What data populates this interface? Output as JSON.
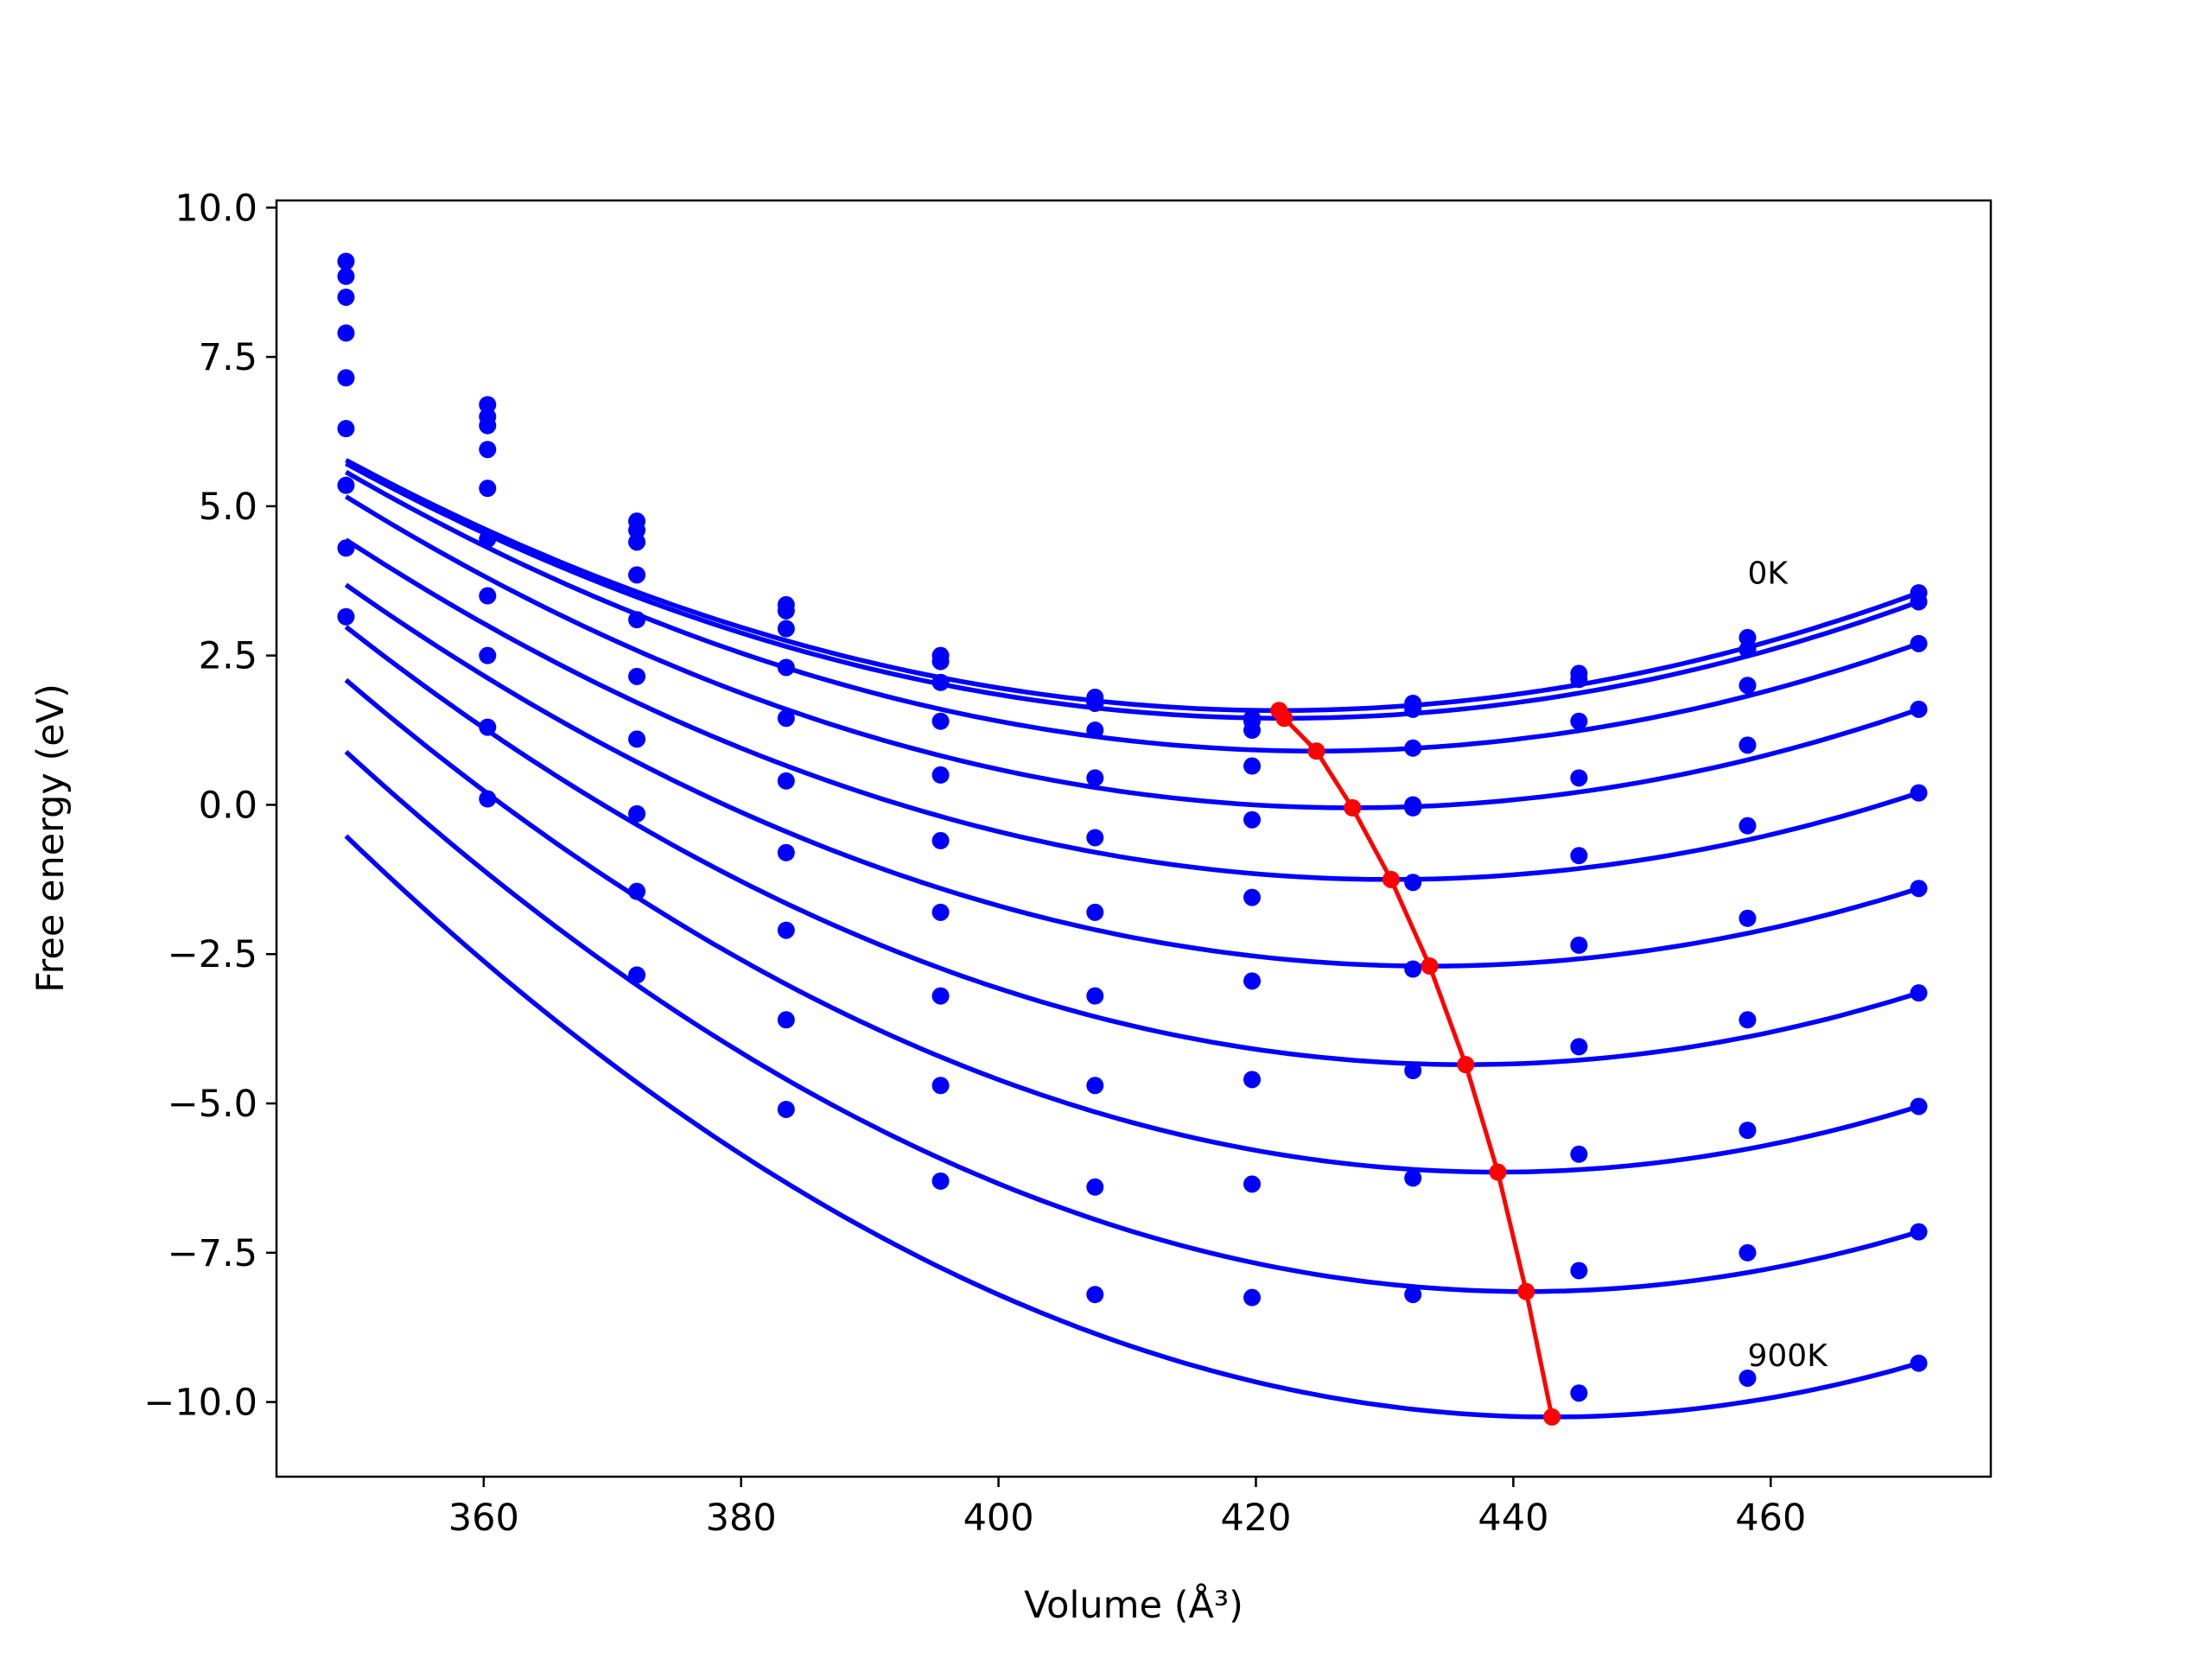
{
  "chart_data": {
    "type": "line",
    "xlabel": "Volume (Å³)",
    "ylabel": "Free energy (eV)",
    "xlim": [
      343.9,
      477.1
    ],
    "ylim": [
      -11.25,
      10.12
    ],
    "xticks": [
      360,
      380,
      400,
      420,
      440,
      460
    ],
    "yticks": [
      -10.0,
      -7.5,
      -5.0,
      -2.5,
      0.0,
      2.5,
      5.0,
      7.5,
      10.0
    ],
    "xtick_labels": [
      "360",
      "380",
      "400",
      "420",
      "440",
      "460"
    ],
    "ytick_labels": [
      "−10.0",
      "−7.5",
      "−5.0",
      "−2.5",
      "0.0",
      "2.5",
      "5.0",
      "7.5",
      "10.0"
    ],
    "annotations": [
      {
        "text": "0K",
        "x": 458.2,
        "y": 3.7
      },
      {
        "text": "900K",
        "x": 458.2,
        "y": -9.4
      }
    ],
    "x": [
      349.3,
      360.3,
      371.9,
      383.5,
      395.5,
      407.5,
      419.7,
      432.2,
      445.1,
      458.2,
      471.5
    ],
    "series": [
      {
        "values": [
          9.1,
          6.7,
          4.75,
          3.35,
          2.5,
          1.8,
          1.45,
          1.7,
          2.2,
          2.8,
          3.55
        ],
        "fit": {
          "vmin": 421.8,
          "emin": 1.58
        }
      },
      {
        "values": [
          8.85,
          6.5,
          4.6,
          3.25,
          2.4,
          1.7,
          1.4,
          1.6,
          2.1,
          2.6,
          3.4
        ],
        "fit": {
          "vmin": 422.2,
          "emin": 1.45
        }
      },
      {
        "values": [
          8.5,
          6.35,
          4.4,
          2.95,
          2.05,
          1.25,
          1.25,
          0.95,
          1.4,
          2.0,
          2.7
        ],
        "fit": {
          "vmin": 424.7,
          "emin": 0.9
        }
      },
      {
        "values": [
          7.9,
          5.95,
          3.85,
          2.3,
          1.4,
          0.45,
          0.65,
          0.0,
          0.45,
          1.0,
          1.6
        ],
        "fit": {
          "vmin": 427.5,
          "emin": -0.05
        }
      },
      {
        "values": [
          7.15,
          5.3,
          3.1,
          1.45,
          0.5,
          -0.55,
          -0.25,
          -0.05,
          -0.85,
          -0.35,
          0.2
        ],
        "fit": {
          "vmin": 430.5,
          "emin": -1.25
        }
      },
      {
        "values": [
          6.3,
          4.45,
          2.15,
          0.4,
          -0.6,
          -1.8,
          -1.55,
          -1.3,
          -2.35,
          -1.9,
          -1.4
        ],
        "fit": {
          "vmin": 433.5,
          "emin": -2.7
        }
      },
      {
        "values": [
          5.35,
          3.5,
          1.1,
          -0.8,
          -1.8,
          -3.2,
          -2.95,
          -2.75,
          -4.05,
          -3.6,
          -3.15
        ],
        "fit": {
          "vmin": 436.3,
          "emin": -4.35
        }
      },
      {
        "values": [
          4.3,
          2.5,
          -0.15,
          -2.1,
          -3.2,
          -4.7,
          -4.6,
          -4.45,
          -5.85,
          -5.45,
          -5.05
        ],
        "fit": {
          "vmin": 438.8,
          "emin": -6.15
        }
      },
      {
        "values": [
          3.15,
          1.3,
          -1.45,
          -3.6,
          -4.7,
          -6.4,
          -6.35,
          -6.25,
          -7.8,
          -7.5,
          -7.15
        ],
        "fit": {
          "vmin": 441.0,
          "emin": -8.15
        }
      },
      {
        "values": [
          null,
          0.1,
          -2.85,
          -5.1,
          -6.3,
          -8.2,
          -8.25,
          -8.2,
          -9.85,
          -9.6,
          -9.35
        ],
        "fit": {
          "vmin": 443.0,
          "emin": -10.25
        }
      }
    ],
    "minimum_path": {
      "color": "#ff0000",
      "x": [
        421.8,
        422.2,
        424.7,
        427.5,
        430.5,
        433.5,
        436.3,
        438.8,
        441.0,
        443.0
      ],
      "y": [
        1.58,
        1.45,
        0.9,
        -0.05,
        -1.25,
        -2.7,
        -4.35,
        -6.15,
        -8.15,
        -10.25
      ]
    },
    "colors": {
      "series": "#0000ff",
      "path": "#ff0000"
    }
  }
}
